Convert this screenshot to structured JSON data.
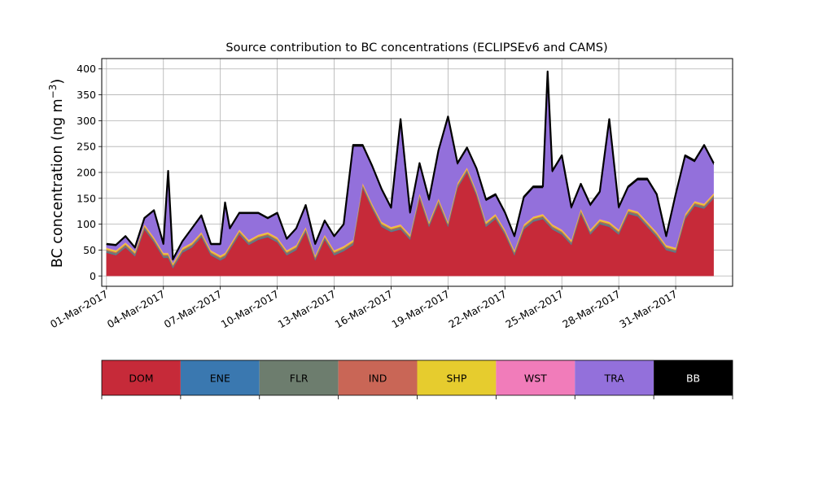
{
  "chart_data": {
    "type": "area",
    "title": "Source contribution to BC concentrations (ECLIPSEv6 and CAMS)",
    "ylabel": "BC concentration (ng m",
    "ylabel_sup": "−3",
    "ylabel_close": ")",
    "xlabel": "",
    "xlim": [
      "2017-02-28T18:00",
      "2017-04-03T00:00"
    ],
    "ylim": [
      -20,
      420
    ],
    "grid": true,
    "yticks": [
      0,
      50,
      100,
      150,
      200,
      250,
      300,
      350,
      400
    ],
    "xticks": [
      "01-Mar-2017",
      "04-Mar-2017",
      "07-Mar-2017",
      "10-Mar-2017",
      "13-Mar-2017",
      "16-Mar-2017",
      "19-Mar-2017",
      "22-Mar-2017",
      "25-Mar-2017",
      "28-Mar-2017",
      "31-Mar-2017"
    ],
    "x": [
      "2017-03-01T00:00",
      "2017-03-01T12:00",
      "2017-03-02T00:00",
      "2017-03-02T12:00",
      "2017-03-03T00:00",
      "2017-03-03T12:00",
      "2017-03-04T00:00",
      "2017-03-04T06:00",
      "2017-03-04T12:00",
      "2017-03-05T00:00",
      "2017-03-05T12:00",
      "2017-03-06T00:00",
      "2017-03-06T12:00",
      "2017-03-07T00:00",
      "2017-03-07T06:00",
      "2017-03-07T12:00",
      "2017-03-08T00:00",
      "2017-03-08T12:00",
      "2017-03-09T00:00",
      "2017-03-09T12:00",
      "2017-03-10T00:00",
      "2017-03-10T12:00",
      "2017-03-11T00:00",
      "2017-03-11T12:00",
      "2017-03-12T00:00",
      "2017-03-12T12:00",
      "2017-03-13T00:00",
      "2017-03-13T12:00",
      "2017-03-14T00:00",
      "2017-03-14T12:00",
      "2017-03-15T00:00",
      "2017-03-15T12:00",
      "2017-03-16T00:00",
      "2017-03-16T12:00",
      "2017-03-17T00:00",
      "2017-03-17T12:00",
      "2017-03-18T00:00",
      "2017-03-18T12:00",
      "2017-03-19T00:00",
      "2017-03-19T12:00",
      "2017-03-20T00:00",
      "2017-03-20T12:00",
      "2017-03-21T00:00",
      "2017-03-21T12:00",
      "2017-03-22T00:00",
      "2017-03-22T12:00",
      "2017-03-23T00:00",
      "2017-03-23T12:00",
      "2017-03-24T00:00",
      "2017-03-24T06:00",
      "2017-03-24T12:00",
      "2017-03-25T00:00",
      "2017-03-25T12:00",
      "2017-03-26T00:00",
      "2017-03-26T12:00",
      "2017-03-27T00:00",
      "2017-03-27T12:00",
      "2017-03-28T00:00",
      "2017-03-28T12:00",
      "2017-03-29T00:00",
      "2017-03-29T12:00",
      "2017-03-30T00:00",
      "2017-03-30T12:00",
      "2017-03-31T00:00",
      "2017-03-31T12:00",
      "2017-04-01T00:00",
      "2017-04-01T12:00",
      "2017-04-02T00:00"
    ],
    "series": [
      {
        "name": "DOM",
        "color": "#c62a39",
        "values": [
          45,
          40,
          55,
          38,
          90,
          65,
          35,
          35,
          15,
          45,
          55,
          75,
          40,
          30,
          35,
          50,
          80,
          60,
          70,
          75,
          65,
          40,
          50,
          85,
          30,
          70,
          40,
          48,
          60,
          170,
          130,
          95,
          85,
          90,
          70,
          150,
          95,
          140,
          95,
          170,
          200,
          155,
          95,
          110,
          80,
          40,
          90,
          105,
          110,
          100,
          90,
          80,
          60,
          120,
          80,
          100,
          95,
          80,
          120,
          115,
          95,
          75,
          50,
          45,
          110,
          135,
          130,
          150
        ]
      },
      {
        "name": "ENE",
        "color": "#3a78b0",
        "values": [
          1,
          1,
          1,
          1,
          1,
          1,
          1,
          1,
          1,
          1,
          1,
          1,
          1,
          1,
          1,
          1,
          1,
          1,
          1,
          1,
          1,
          1,
          1,
          1,
          1,
          1,
          1,
          1,
          1,
          1,
          1,
          1,
          1,
          1,
          1,
          1,
          1,
          1,
          1,
          1,
          1,
          1,
          1,
          1,
          1,
          1,
          1,
          1,
          1,
          1,
          1,
          1,
          1,
          1,
          1,
          1,
          1,
          1,
          1,
          1,
          1,
          1,
          1,
          1,
          1,
          1,
          1,
          1
        ]
      },
      {
        "name": "FLR",
        "color": "#6d7d6e",
        "values": [
          3,
          3,
          3,
          3,
          3,
          3,
          3,
          3,
          3,
          3,
          3,
          3,
          3,
          3,
          3,
          3,
          3,
          3,
          3,
          3,
          3,
          3,
          3,
          3,
          3,
          3,
          3,
          3,
          3,
          3,
          3,
          3,
          3,
          3,
          3,
          3,
          3,
          3,
          3,
          3,
          3,
          3,
          3,
          3,
          3,
          3,
          3,
          3,
          3,
          3,
          3,
          3,
          3,
          3,
          3,
          3,
          3,
          3,
          3,
          3,
          3,
          3,
          3,
          3,
          3,
          3,
          3,
          3
        ]
      },
      {
        "name": "IND",
        "color": "#c96656",
        "values": [
          2,
          2,
          2,
          2,
          2,
          2,
          2,
          2,
          2,
          2,
          2,
          2,
          2,
          2,
          2,
          2,
          2,
          2,
          2,
          2,
          2,
          2,
          2,
          2,
          2,
          2,
          2,
          2,
          2,
          2,
          2,
          2,
          2,
          2,
          2,
          2,
          2,
          2,
          2,
          2,
          2,
          2,
          2,
          2,
          2,
          2,
          2,
          2,
          2,
          2,
          2,
          2,
          2,
          2,
          2,
          2,
          2,
          2,
          2,
          2,
          2,
          2,
          2,
          2,
          2,
          2,
          2,
          2
        ]
      },
      {
        "name": "SHP",
        "color": "#e6cc2e",
        "values": [
          3,
          3,
          3,
          3,
          3,
          3,
          3,
          3,
          3,
          3,
          3,
          3,
          3,
          3,
          3,
          3,
          3,
          3,
          3,
          3,
          3,
          3,
          3,
          3,
          3,
          3,
          3,
          3,
          3,
          3,
          3,
          3,
          3,
          3,
          3,
          3,
          3,
          3,
          3,
          3,
          3,
          3,
          3,
          3,
          3,
          3,
          3,
          3,
          3,
          3,
          3,
          3,
          3,
          3,
          3,
          3,
          3,
          3,
          3,
          3,
          3,
          3,
          3,
          3,
          3,
          3,
          3,
          3
        ]
      },
      {
        "name": "WST",
        "color": "#f17cba",
        "values": [
          1,
          1,
          1,
          1,
          1,
          1,
          1,
          1,
          1,
          1,
          1,
          1,
          1,
          1,
          1,
          1,
          1,
          1,
          1,
          1,
          1,
          1,
          1,
          1,
          1,
          1,
          1,
          1,
          1,
          1,
          1,
          1,
          1,
          1,
          1,
          1,
          1,
          1,
          1,
          1,
          1,
          1,
          1,
          1,
          1,
          1,
          1,
          1,
          1,
          1,
          1,
          1,
          1,
          1,
          1,
          1,
          1,
          1,
          1,
          1,
          1,
          1,
          1,
          1,
          1,
          1,
          1,
          1
        ]
      },
      {
        "name": "TRA",
        "color": "#9370db",
        "values": [
          5,
          8,
          10,
          5,
          10,
          50,
          15,
          155,
          5,
          10,
          25,
          30,
          10,
          20,
          95,
          30,
          30,
          50,
          40,
          25,
          45,
          20,
          30,
          40,
          20,
          25,
          25,
          40,
          180,
          70,
          70,
          60,
          35,
          200,
          40,
          55,
          40,
          90,
          200,
          35,
          35,
          40,
          40,
          35,
          30,
          25,
          50,
          55,
          50,
          280,
          100,
          140,
          60,
          45,
          45,
          50,
          195,
          40,
          40,
          60,
          80,
          70,
          15,
          100,
          110,
          75,
          110,
          55
        ]
      },
      {
        "name": "BB",
        "color": "#000000",
        "values": [
          2,
          2,
          2,
          2,
          2,
          2,
          2,
          3,
          2,
          2,
          2,
          2,
          2,
          2,
          2,
          2,
          2,
          2,
          2,
          2,
          2,
          2,
          2,
          2,
          2,
          2,
          2,
          2,
          3,
          3,
          3,
          3,
          2,
          3,
          3,
          3,
          3,
          3,
          3,
          3,
          3,
          3,
          3,
          3,
          3,
          2,
          3,
          3,
          3,
          5,
          3,
          3,
          3,
          3,
          3,
          3,
          3,
          3,
          3,
          3,
          3,
          3,
          2,
          3,
          3,
          3,
          3,
          3
        ]
      }
    ]
  }
}
